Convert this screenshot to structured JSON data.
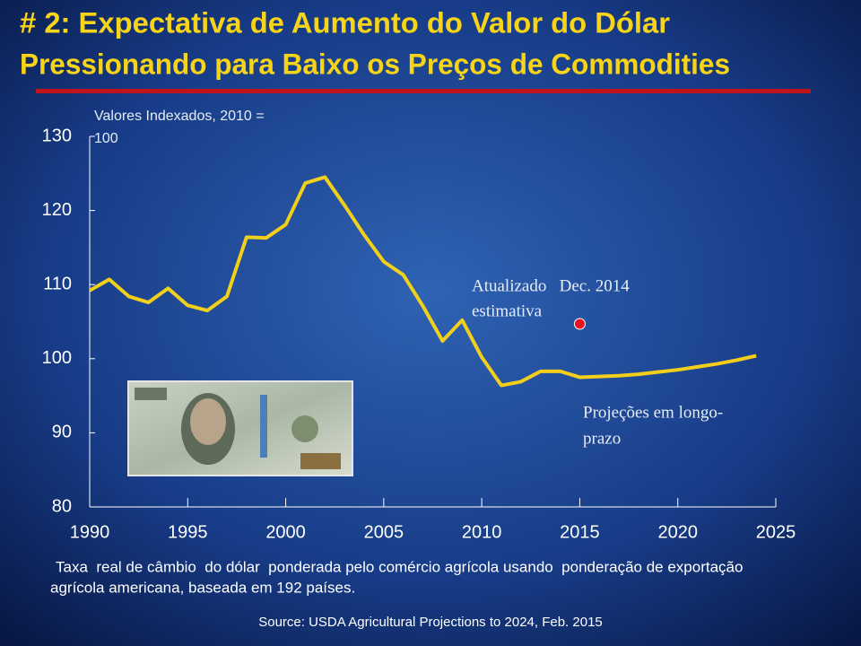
{
  "chart_data": {
    "type": "line",
    "title": [
      "# 2: Expectativa de Aumento do Valor do  Dólar",
      "Pressionando para Baixo os Preços de Commodities"
    ],
    "y_label": [
      "Valores Indexados, 2010 =",
      "100"
    ],
    "x": [
      1990,
      1991,
      1992,
      1993,
      1994,
      1995,
      1996,
      1997,
      1998,
      1999,
      2000,
      2001,
      2002,
      2003,
      2004,
      2005,
      2006,
      2007,
      2008,
      2009,
      2010,
      2011,
      2012,
      2013,
      2014,
      2015,
      2016,
      2017,
      2018,
      2019,
      2020,
      2021,
      2022,
      2023,
      2024
    ],
    "series": [
      {
        "color": "#f2cf1a",
        "values": [
          109.2,
          110.7,
          108.4,
          107.6,
          109.5,
          107.2,
          106.5,
          108.4,
          116.4,
          116.3,
          118.1,
          123.7,
          124.5,
          120.7,
          116.7,
          113.1,
          111.3,
          107.1,
          102.4,
          105.2,
          100.2,
          96.4,
          96.9,
          98.3,
          98.3,
          97.5,
          97.6,
          97.7,
          97.9,
          98.2,
          98.5,
          98.9,
          99.3,
          99.8,
          100.4
        ]
      }
    ],
    "estimate": {
      "x": 2015,
      "value": 104.7,
      "color": "#e8101c"
    },
    "annotations": [
      [
        "Atualizado   Dec. 2014",
        "estimativa"
      ],
      [
        "Projeções em longo-",
        "prazo"
      ]
    ],
    "xlim": [
      1990,
      2025
    ],
    "ylim": [
      80,
      130
    ],
    "xticks": [
      1990,
      1995,
      2000,
      2005,
      2010,
      2015,
      2020,
      2025
    ],
    "yticks": [
      80,
      90,
      100,
      110,
      120,
      130
    ],
    "caption": [
      "Taxa  real de câmbio  do dólar  ponderada pelo comércio agrícola usando  ponderação de exportação",
      "agrícola americana, baseada em 192 países."
    ],
    "source": "Source: USDA Agricultural Projections to 2024, Feb. 2015"
  }
}
